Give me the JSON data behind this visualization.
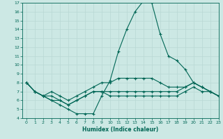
{
  "xlabel": "Humidex (Indice chaleur)",
  "xlim": [
    -0.5,
    23
  ],
  "ylim": [
    4,
    17
  ],
  "yticks": [
    4,
    5,
    6,
    7,
    8,
    9,
    10,
    11,
    12,
    13,
    14,
    15,
    16,
    17
  ],
  "xticks": [
    0,
    1,
    2,
    3,
    4,
    5,
    6,
    7,
    8,
    9,
    10,
    11,
    12,
    13,
    14,
    15,
    16,
    17,
    18,
    19,
    20,
    21,
    22,
    23
  ],
  "bg_color": "#cce8e4",
  "line_color": "#006655",
  "grid_color": "#b8d8d4",
  "lines": [
    [
      8.0,
      7.0,
      6.5,
      6.0,
      5.5,
      5.0,
      4.5,
      4.5,
      4.5,
      6.5,
      8.2,
      11.5,
      14.0,
      16.0,
      17.2,
      17.0,
      13.5,
      11.0,
      10.5,
      9.5,
      8.0,
      7.5,
      7.0,
      6.5
    ],
    [
      8.0,
      7.0,
      6.5,
      7.0,
      6.5,
      6.0,
      6.5,
      7.0,
      7.5,
      8.0,
      8.0,
      8.5,
      8.5,
      8.5,
      8.5,
      8.5,
      8.0,
      7.5,
      7.5,
      7.5,
      8.0,
      7.5,
      7.0,
      6.5
    ],
    [
      8.0,
      7.0,
      6.5,
      6.5,
      6.0,
      5.5,
      6.0,
      6.5,
      7.0,
      7.0,
      7.0,
      7.0,
      7.0,
      7.0,
      7.0,
      7.0,
      7.0,
      7.0,
      7.0,
      7.5,
      8.0,
      7.5,
      7.0,
      6.5
    ],
    [
      8.0,
      7.0,
      6.5,
      6.0,
      6.0,
      5.5,
      6.0,
      6.5,
      7.0,
      7.0,
      6.5,
      6.5,
      6.5,
      6.5,
      6.5,
      6.5,
      6.5,
      6.5,
      6.5,
      7.0,
      7.5,
      7.0,
      7.0,
      6.5
    ]
  ]
}
